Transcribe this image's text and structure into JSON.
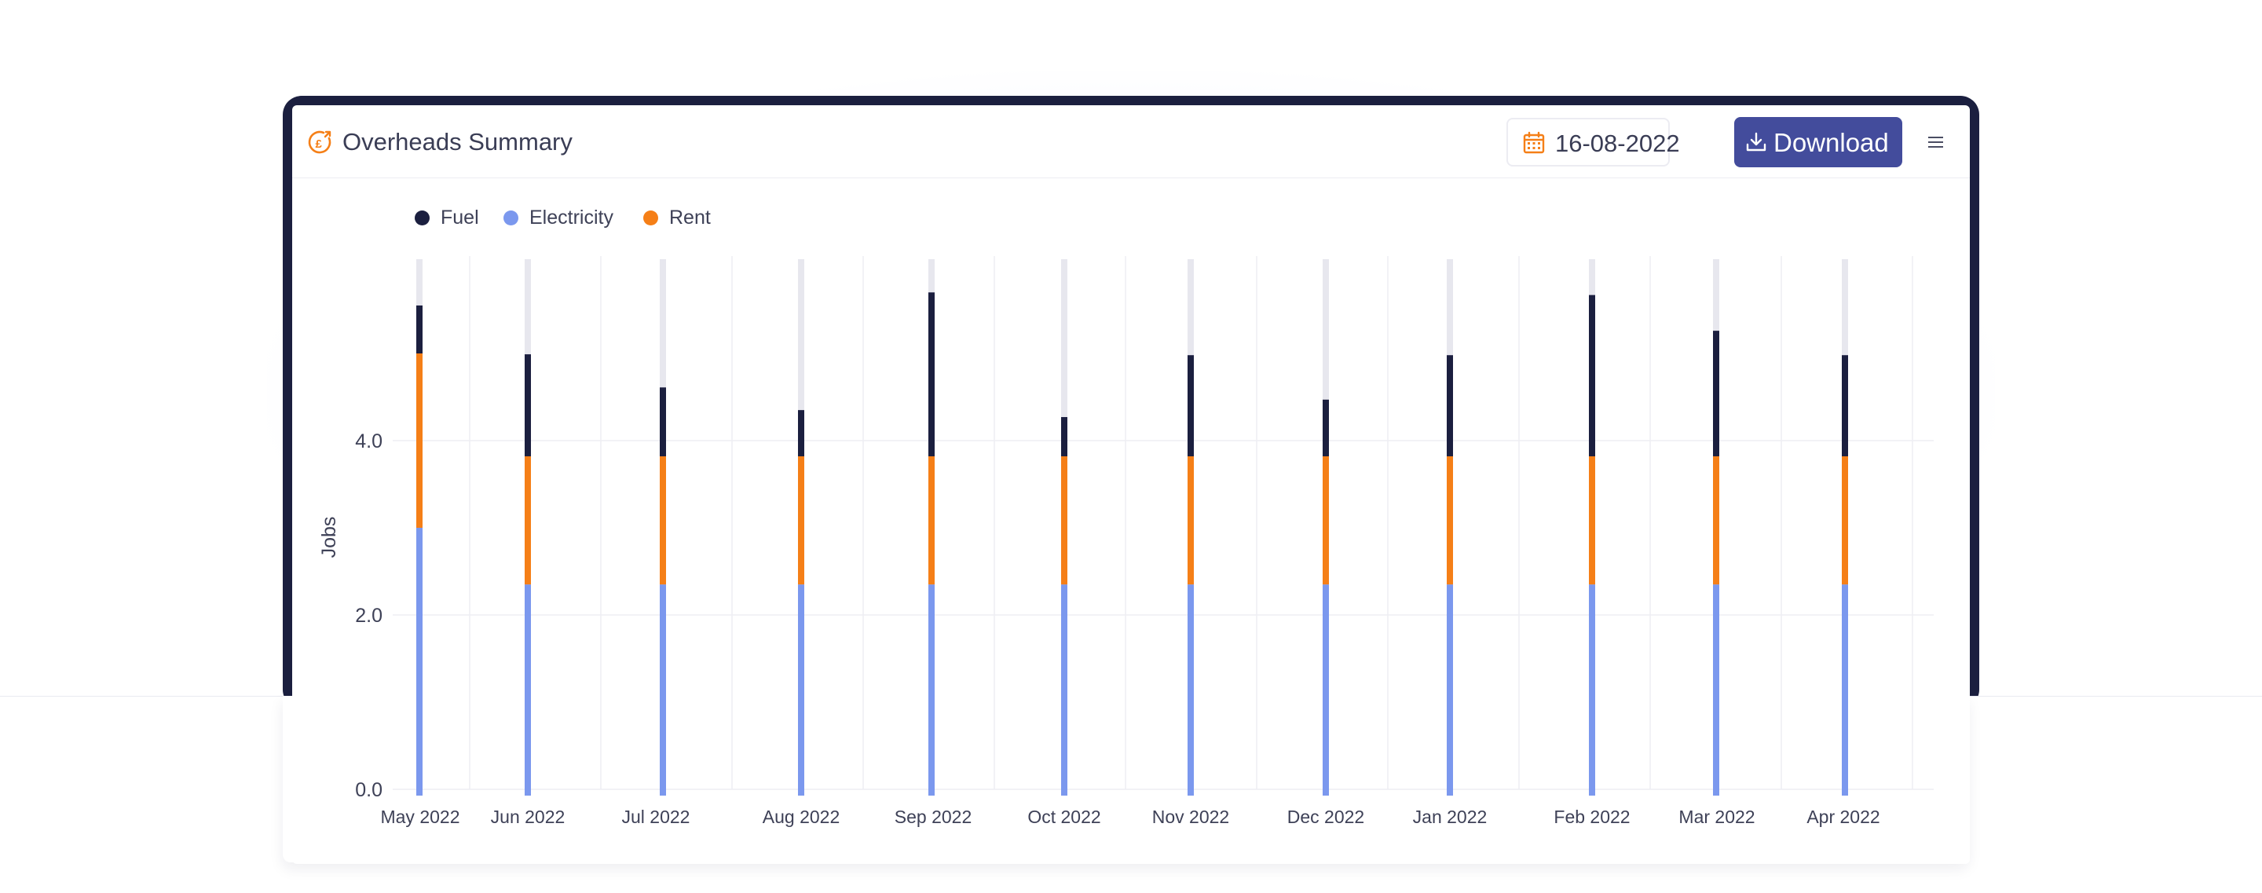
{
  "header": {
    "title": "Overheads Summary",
    "title_icon": "pound-coin-icon",
    "date": "16-08-2022",
    "date_icon": "calendar-icon",
    "download_label": "Download",
    "download_icon": "download-icon",
    "menu_icon": "hamburger-menu-icon"
  },
  "colors": {
    "accent": "#f57f17",
    "button": "#434c9c",
    "frame": "#1b1f3f",
    "fuel": "#1b1f3f",
    "electricity": "#7b98ee",
    "rent": "#f57f17",
    "track": "#e7e7ee"
  },
  "chart_data": {
    "type": "bar",
    "stacked": true,
    "ylabel": "Jobs",
    "xlabel": "",
    "ylim": [
      0,
      6.2
    ],
    "yticks": [
      "0.0",
      "2.0",
      "4.0"
    ],
    "ytick_values": [
      0,
      2,
      4
    ],
    "grid": true,
    "legend_position": "top-left",
    "categories": [
      "May 2022",
      "Jun 2022",
      "Jul 2022",
      "Aug 2022",
      "Sep 2022",
      "Oct 2022",
      "Nov 2022",
      "Dec 2022",
      "Jan 2022",
      "Feb 2022",
      "Mar 2022",
      "Apr 2022"
    ],
    "series": [
      {
        "name": "Fuel",
        "values": [
          0.55,
          1.17,
          0.79,
          0.53,
          1.88,
          0.45,
          1.16,
          0.65,
          1.16,
          1.85,
          1.44,
          1.16
        ]
      },
      {
        "name": "Electricity",
        "values": [
          3.0,
          2.35,
          2.35,
          2.35,
          2.35,
          2.35,
          2.35,
          2.35,
          2.35,
          2.35,
          2.35,
          2.35
        ]
      },
      {
        "name": "Rent",
        "values": [
          2.0,
          1.47,
          1.47,
          1.47,
          1.47,
          1.47,
          1.47,
          1.47,
          1.47,
          1.47,
          1.47,
          1.47
        ]
      }
    ]
  }
}
